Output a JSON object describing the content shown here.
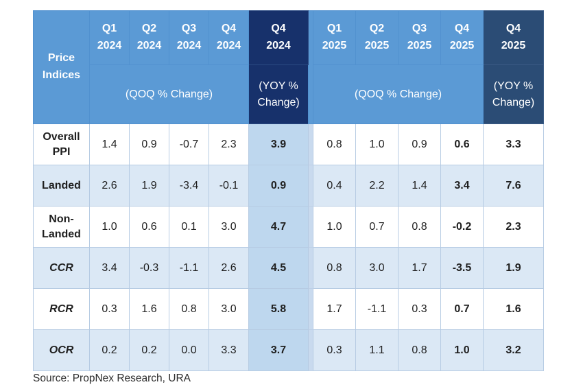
{
  "table": {
    "corner_label": "Price Indices",
    "groups": [
      {
        "year": "2024",
        "quarters": [
          "Q1",
          "Q2",
          "Q3",
          "Q4"
        ],
        "qoq_label": "(QOQ % Change)",
        "yoy_quarter": "Q4",
        "yoy_year": "2024",
        "yoy_label": "(YOY % Change)"
      },
      {
        "year": "2025",
        "quarters": [
          "Q1",
          "Q2",
          "Q3",
          "Q4"
        ],
        "qoq_label": "(QOQ % Change)",
        "yoy_quarter": "Q4",
        "yoy_year": "2025",
        "yoy_label": "(YOY % Change)"
      }
    ],
    "rows": [
      {
        "label": "Overall PPI",
        "italic": false,
        "qoq_2024": [
          "1.4",
          "0.9",
          "-0.7",
          "2.3"
        ],
        "yoy_2024": "3.9",
        "qoq_2025": [
          "0.8",
          "1.0",
          "0.9",
          "0.6"
        ],
        "yoy_2025": "3.3"
      },
      {
        "label": "Landed",
        "italic": false,
        "qoq_2024": [
          "2.6",
          "1.9",
          "-3.4",
          "-0.1"
        ],
        "yoy_2024": "0.9",
        "qoq_2025": [
          "0.4",
          "2.2",
          "1.4",
          "3.4"
        ],
        "yoy_2025": "7.6"
      },
      {
        "label": "Non-Landed",
        "italic": false,
        "qoq_2024": [
          "1.0",
          "0.6",
          "0.1",
          "3.0"
        ],
        "yoy_2024": "4.7",
        "qoq_2025": [
          "1.0",
          "0.7",
          "0.8",
          "-0.2"
        ],
        "yoy_2025": "2.3"
      },
      {
        "label": "CCR",
        "italic": true,
        "qoq_2024": [
          "3.4",
          "-0.3",
          "-1.1",
          "2.6"
        ],
        "yoy_2024": "4.5",
        "qoq_2025": [
          "0.8",
          "3.0",
          "1.7",
          "-3.5"
        ],
        "yoy_2025": "1.9"
      },
      {
        "label": "RCR",
        "italic": true,
        "qoq_2024": [
          "0.3",
          "1.6",
          "0.8",
          "3.0"
        ],
        "yoy_2024": "5.8",
        "qoq_2025": [
          "1.7",
          "-1.1",
          "0.3",
          "0.7"
        ],
        "yoy_2025": "1.6"
      },
      {
        "label": "OCR",
        "italic": true,
        "qoq_2024": [
          "0.2",
          "0.2",
          "0.0",
          "3.3"
        ],
        "yoy_2024": "3.7",
        "qoq_2025": [
          "0.3",
          "1.1",
          "0.8",
          "1.0"
        ],
        "yoy_2025": "3.2"
      }
    ]
  },
  "source": "Source: PropNex Research, URA",
  "colors": {
    "header_blue": "#5b9ad5",
    "yoy_2024_navy": "#17316b",
    "yoy_2025_navy": "#2b4c75",
    "row_stripe_light": "#dbe8f5",
    "yoy_2024_body_shade": "#bed7ee",
    "spacer_body": "#c9daee"
  },
  "chart_data": {
    "type": "table",
    "title": "Price Indices",
    "columns": [
      "Q1 2024 QOQ %",
      "Q2 2024 QOQ %",
      "Q3 2024 QOQ %",
      "Q4 2024 QOQ %",
      "Q4 2024 YOY %",
      "Q1 2025 QOQ %",
      "Q2 2025 QOQ %",
      "Q3 2025 QOQ %",
      "Q4 2025 QOQ %",
      "Q4 2025 YOY %"
    ],
    "categories": [
      "Overall PPI",
      "Landed",
      "Non-Landed",
      "CCR",
      "RCR",
      "OCR"
    ],
    "series": [
      {
        "name": "Overall PPI",
        "values": [
          1.4,
          0.9,
          -0.7,
          2.3,
          3.9,
          0.8,
          1.0,
          0.9,
          0.6,
          3.3
        ]
      },
      {
        "name": "Landed",
        "values": [
          2.6,
          1.9,
          -3.4,
          -0.1,
          0.9,
          0.4,
          2.2,
          1.4,
          3.4,
          7.6
        ]
      },
      {
        "name": "Non-Landed",
        "values": [
          1.0,
          0.6,
          0.1,
          3.0,
          4.7,
          1.0,
          0.7,
          0.8,
          -0.2,
          2.3
        ]
      },
      {
        "name": "CCR",
        "values": [
          3.4,
          -0.3,
          -1.1,
          2.6,
          4.5,
          0.8,
          3.0,
          1.7,
          -3.5,
          1.9
        ]
      },
      {
        "name": "RCR",
        "values": [
          0.3,
          1.6,
          0.8,
          3.0,
          5.8,
          1.7,
          -1.1,
          0.3,
          0.7,
          1.6
        ]
      },
      {
        "name": "OCR",
        "values": [
          0.2,
          0.2,
          0.0,
          3.3,
          3.7,
          0.3,
          1.1,
          0.8,
          1.0,
          3.2
        ]
      }
    ],
    "source_note": "Source: PropNex Research, URA"
  }
}
